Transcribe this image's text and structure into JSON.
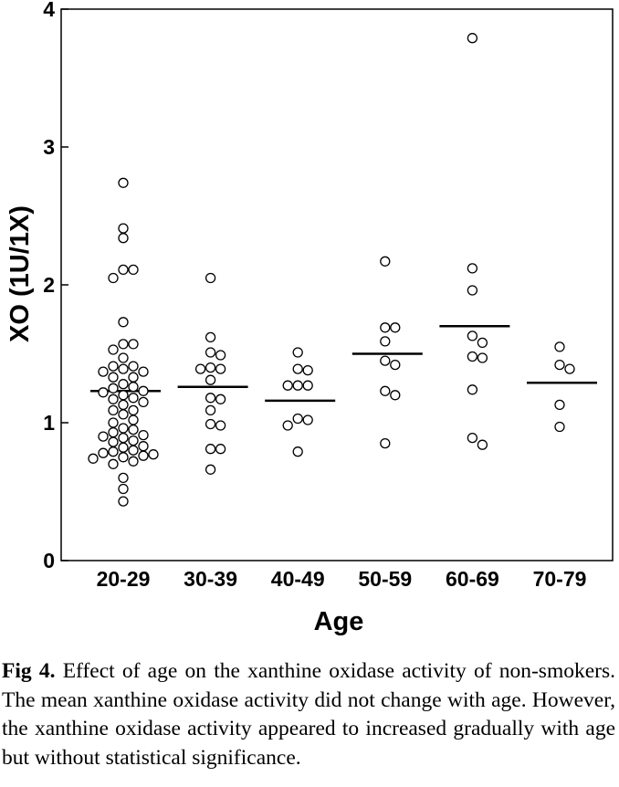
{
  "chart_data": {
    "type": "scatter",
    "title": "",
    "xlabel": "Age",
    "ylabel": "XO (1U/1X)",
    "ylim": [
      0,
      4
    ],
    "yticks": [
      0,
      1,
      2,
      3,
      4
    ],
    "categories": [
      "20-29",
      "30-39",
      "40-49",
      "50-59",
      "60-69",
      "70-79"
    ],
    "means": [
      1.23,
      1.26,
      1.16,
      1.5,
      1.7,
      1.29
    ],
    "points": [
      [
        2.74,
        2.41,
        2.34,
        2.11,
        2.11,
        2.05,
        1.73,
        1.57,
        1.57,
        1.53,
        1.47,
        1.41,
        1.41,
        1.39,
        1.37,
        1.37,
        1.33,
        1.33,
        1.28,
        1.26,
        1.25,
        1.23,
        1.22,
        1.2,
        1.18,
        1.17,
        1.15,
        1.13,
        1.09,
        1.09,
        1.06,
        1.02,
        1.0,
        0.96,
        0.95,
        0.93,
        0.91,
        0.9,
        0.89,
        0.87,
        0.86,
        0.83,
        0.82,
        0.8,
        0.79,
        0.78,
        0.77,
        0.76,
        0.75,
        0.74,
        0.72,
        0.7,
        0.6,
        0.52,
        0.43
      ],
      [
        2.05,
        1.62,
        1.51,
        1.49,
        1.4,
        1.39,
        1.39,
        1.31,
        1.18,
        1.17,
        1.09,
        0.99,
        0.98,
        0.81,
        0.81,
        0.66
      ],
      [
        1.51,
        1.39,
        1.38,
        1.27,
        1.27,
        1.27,
        1.03,
        1.02,
        0.98,
        0.79
      ],
      [
        2.17,
        1.69,
        1.69,
        1.59,
        1.45,
        1.42,
        1.23,
        1.2,
        0.85
      ],
      [
        3.79,
        2.12,
        1.96,
        1.63,
        1.58,
        1.48,
        1.47,
        1.24,
        0.89,
        0.84
      ],
      [
        1.55,
        1.42,
        1.39,
        1.13,
        0.97
      ]
    ]
  },
  "caption": {
    "label": "Fig 4.",
    "text": " Effect of age on the xanthine oxidase activity of non-smokers. The mean xanthine oxidase activity did not change with age. However, the xanthine oxidase activity appeared to increased gradually with age but without statistical significance."
  }
}
